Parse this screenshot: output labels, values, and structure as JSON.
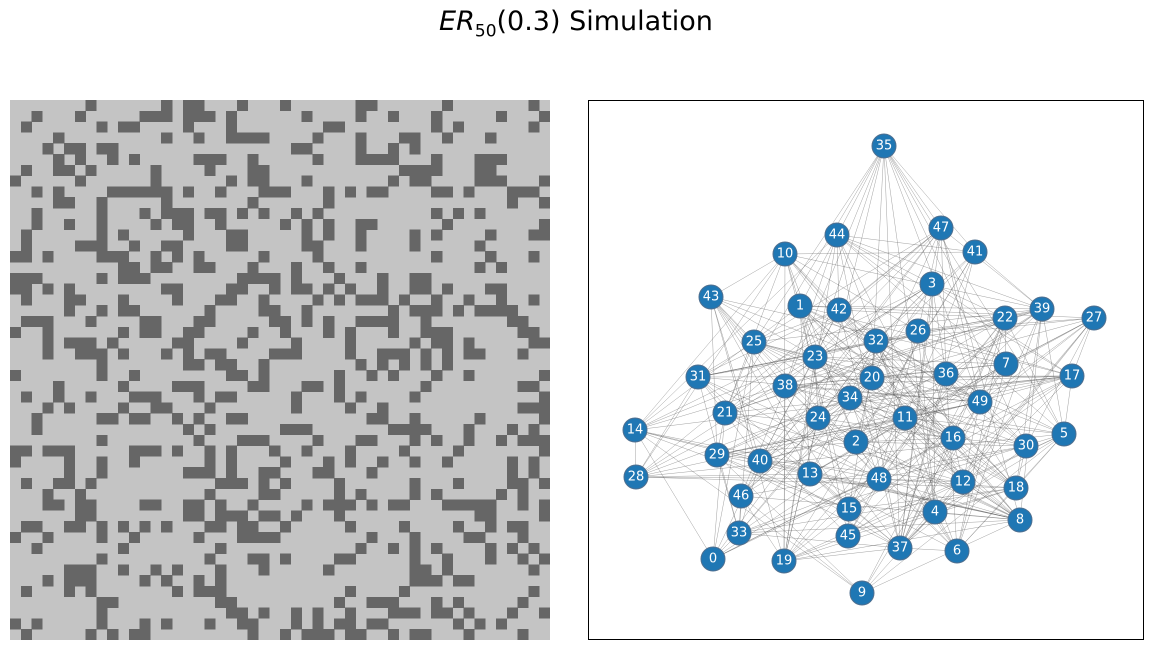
{
  "title": {
    "symbol": "ER",
    "subscript": "50",
    "suffix": "(0.3) Simulation"
  },
  "colors": {
    "cell_on": "#666666",
    "cell_off": "#c4c4c4",
    "node_fill": "#1f77b4",
    "node_stroke": "#4f6f8f",
    "edge": "#555555",
    "frame": "#000000"
  },
  "graph": {
    "n": 50,
    "p": 0.3,
    "node_labels": [
      "0",
      "1",
      "2",
      "3",
      "4",
      "5",
      "6",
      "7",
      "8",
      "9",
      "10",
      "11",
      "12",
      "13",
      "14",
      "15",
      "16",
      "17",
      "18",
      "19",
      "20",
      "21",
      "22",
      "23",
      "24",
      "25",
      "26",
      "27",
      "28",
      "29",
      "30",
      "31",
      "32",
      "33",
      "34",
      "35",
      "36",
      "37",
      "38",
      "39",
      "40",
      "41",
      "42",
      "43",
      "44",
      "45",
      "46",
      "47",
      "48",
      "49"
    ]
  }
}
